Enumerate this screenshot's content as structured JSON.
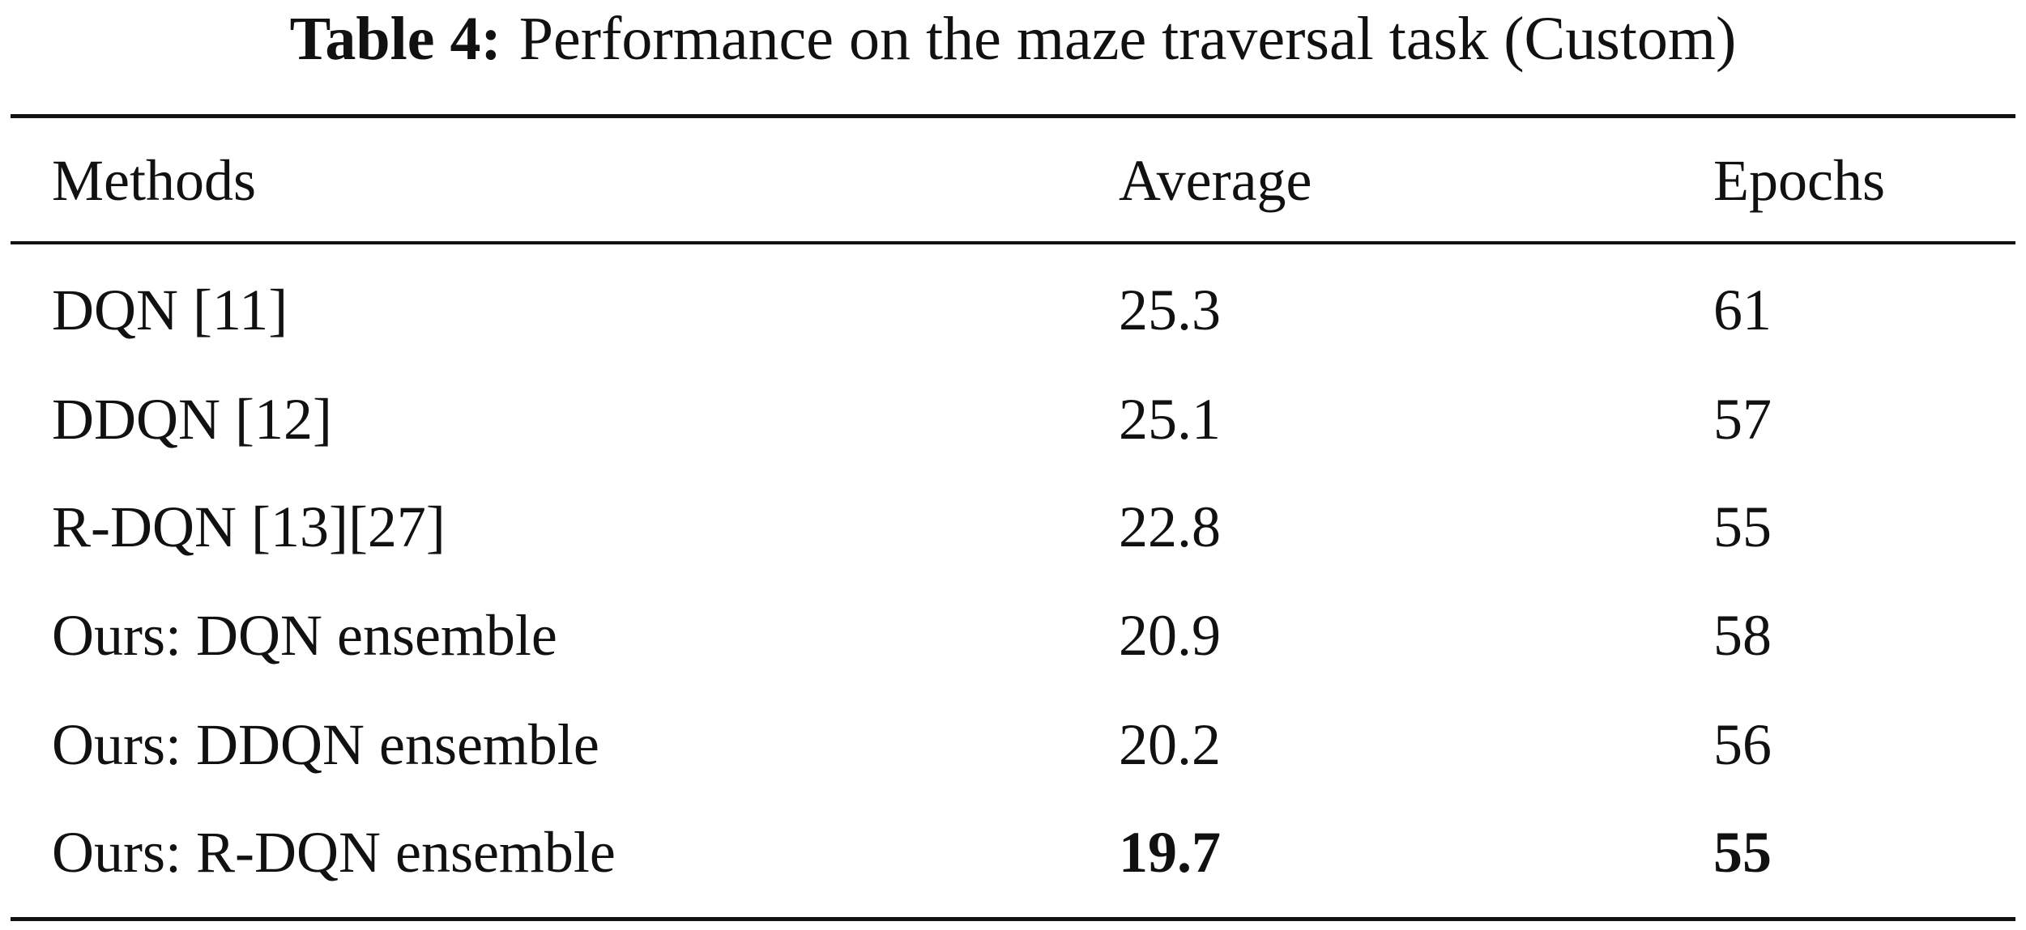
{
  "caption": {
    "label": "Table 4:",
    "text": "Performance on the maze traversal task (Custom)"
  },
  "table": {
    "header": [
      "Methods",
      "Average",
      "Epochs"
    ],
    "rows": [
      [
        "DQN [11]",
        25.3,
        61
      ],
      [
        "DDQN [12]",
        25.1,
        57
      ],
      [
        "R-DQN [13][27]",
        22.8,
        55
      ],
      [
        "Ours: DQN ensemble",
        20.9,
        58
      ],
      [
        "Ours: DDQN ensemble",
        20.2,
        56
      ],
      [
        "Ours: R-DQN ensemble",
        19.7,
        55
      ]
    ]
  }
}
